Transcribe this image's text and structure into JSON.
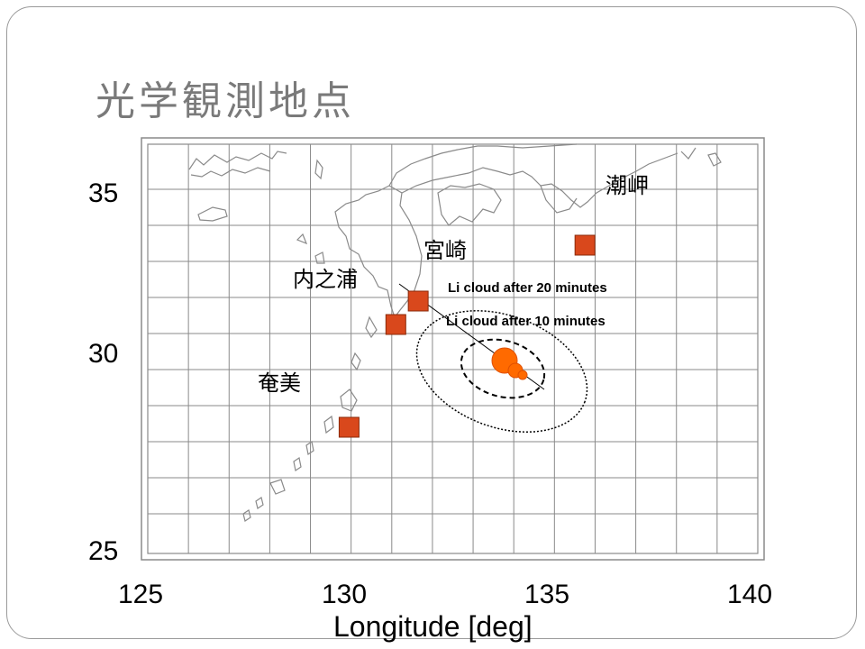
{
  "title": "光学観測地点",
  "axes": {
    "x_label": "Longitude [deg]",
    "x_ticks": [
      "125",
      "130",
      "135",
      "140"
    ],
    "y_ticks": [
      "35",
      "30",
      "25"
    ]
  },
  "stations": [
    {
      "name": "潮岬",
      "lon": 135.75,
      "lat": 33.45
    },
    {
      "name": "宮崎",
      "lon": 131.65,
      "lat": 31.9
    },
    {
      "name": "内之浦",
      "lon": 131.1,
      "lat": 31.25
    },
    {
      "name": "奄美",
      "lon": 129.95,
      "lat": 28.4
    }
  ],
  "cloud_labels": {
    "after_20": "Li cloud after 20 minutes",
    "after_10": "Li cloud after 10 minutes"
  },
  "colors": {
    "station_fill": "#d9481c",
    "cloud_fill": "#ff6a00",
    "grid": "#8a8a8a",
    "coast": "#8a8a8a",
    "title": "#7a7a7a"
  }
}
